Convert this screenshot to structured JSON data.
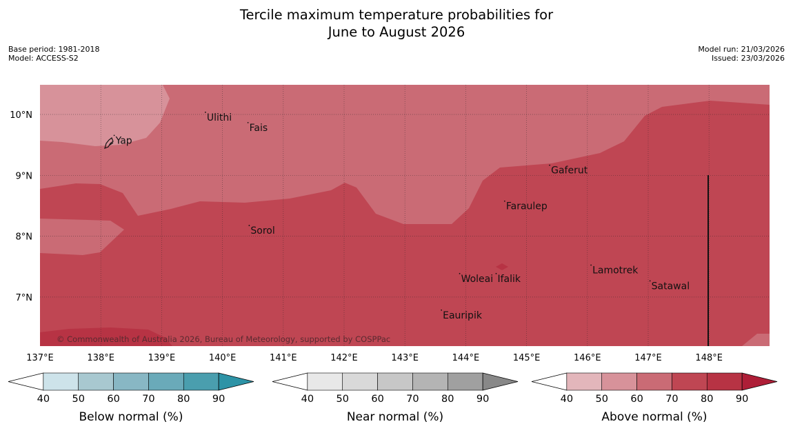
{
  "title": {
    "line1": "Tercile maximum temperature probabilities for",
    "line2": "June to August 2026"
  },
  "meta_left": {
    "base_period": "Base period: 1981-2018",
    "model": "Model: ACCESS-S2"
  },
  "meta_right": {
    "model_run": "Model run: 21/03/2026",
    "issued": "Issued: 23/03/2026"
  },
  "map": {
    "copyright": "© Commonwealth of Australia 2026, Bureau of Meteorology, supported by COSPPac",
    "lon_ticks": [
      {
        "value": 137,
        "label": "137°E"
      },
      {
        "value": 138,
        "label": "138°E"
      },
      {
        "value": 139,
        "label": "139°E"
      },
      {
        "value": 140,
        "label": "140°E"
      },
      {
        "value": 141,
        "label": "141°E"
      },
      {
        "value": 142,
        "label": "142°E"
      },
      {
        "value": 143,
        "label": "143°E"
      },
      {
        "value": 144,
        "label": "144°E"
      },
      {
        "value": 145,
        "label": "145°E"
      },
      {
        "value": 146,
        "label": "146°E"
      },
      {
        "value": 147,
        "label": "147°E"
      },
      {
        "value": 148,
        "label": "148°E"
      }
    ],
    "lat_ticks": [
      {
        "value": 10,
        "label": "10°N"
      },
      {
        "value": 9,
        "label": "9°N"
      },
      {
        "value": 8,
        "label": "8°N"
      },
      {
        "value": 7,
        "label": "7°N"
      }
    ],
    "places": [
      {
        "name": "Yap",
        "lon": 138.22,
        "lat": 9.52
      },
      {
        "name": "Ulithi",
        "lon": 139.72,
        "lat": 9.9
      },
      {
        "name": "Fais",
        "lon": 140.42,
        "lat": 9.73
      },
      {
        "name": "Gaferut",
        "lon": 145.38,
        "lat": 9.03
      },
      {
        "name": "Faraulep",
        "lon": 144.64,
        "lat": 8.44
      },
      {
        "name": "Sorol",
        "lon": 140.44,
        "lat": 8.04
      },
      {
        "name": "Lamotrek",
        "lon": 146.06,
        "lat": 7.39
      },
      {
        "name": "Woleai",
        "lon": 143.9,
        "lat": 7.25
      },
      {
        "name": "Ifalik",
        "lon": 144.5,
        "lat": 7.25
      },
      {
        "name": "Satawal",
        "lon": 147.03,
        "lat": 7.13
      },
      {
        "name": "Eauripik",
        "lon": 143.6,
        "lat": 6.65
      }
    ]
  },
  "colorbars": [
    {
      "id": "below",
      "title": "Below normal (%)",
      "colors": [
        "#ffffff",
        "#cde3ea",
        "#a8c8d0",
        "#88b7c4",
        "#6aaab9",
        "#4a9eae",
        "#2d93a6"
      ],
      "labels": [
        "40",
        "50",
        "60",
        "70",
        "80",
        "90"
      ]
    },
    {
      "id": "near",
      "title": "Near normal (%)",
      "colors": [
        "#ffffff",
        "#e8e8e8",
        "#d9d9d9",
        "#c7c7c7",
        "#b4b4b4",
        "#a0a0a0",
        "#888888"
      ],
      "labels": [
        "40",
        "50",
        "60",
        "70",
        "80",
        "90"
      ]
    },
    {
      "id": "above",
      "title": "Above normal (%)",
      "colors": [
        "#ffffff",
        "#e3b6bb",
        "#d7929a",
        "#ca6b75",
        "#bf4653",
        "#b73344",
        "#ae1e37"
      ],
      "labels": [
        "40",
        "50",
        "60",
        "70",
        "80",
        "90"
      ]
    }
  ]
}
